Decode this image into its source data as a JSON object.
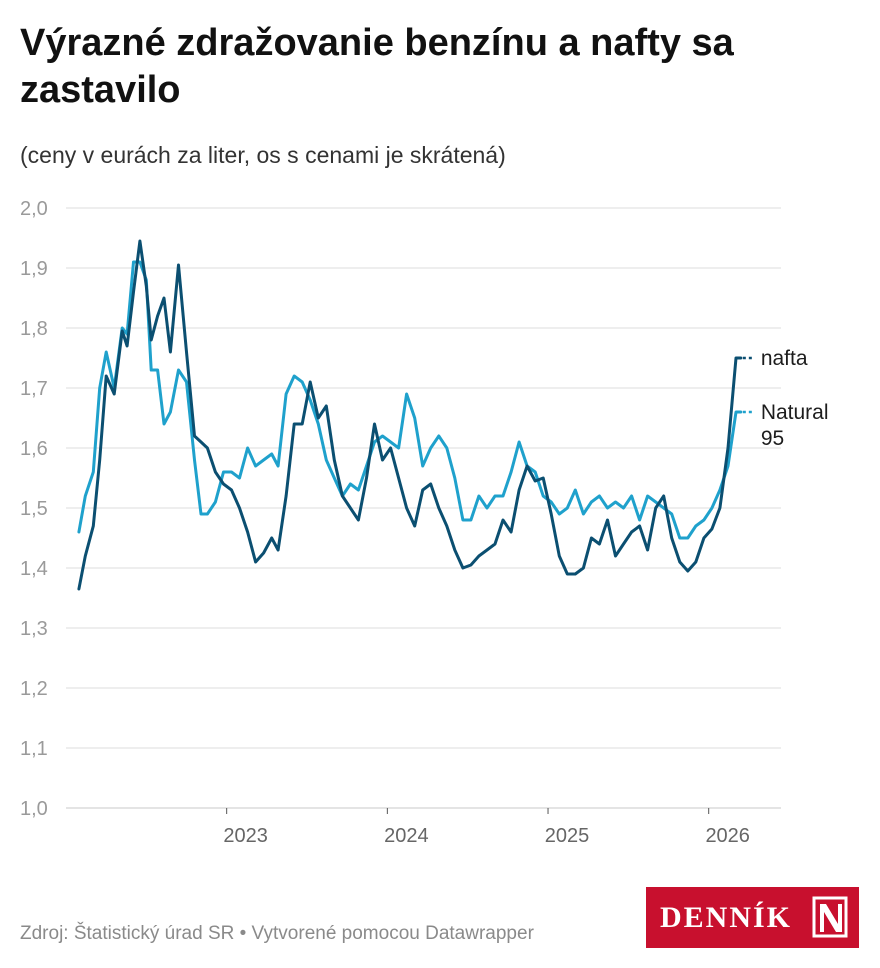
{
  "title": "Výrazné zdražovanie benzínu a nafty sa zastavilo",
  "subtitle": "(ceny v eurách za liter, os s cenami je skrátená)",
  "footer": "Zdroj: Štatistický úrad SR • Vytvorené pomocou Datawrapper",
  "logo": {
    "text": "DENNÍK",
    "mark": "N"
  },
  "colors": {
    "nafta": "#0b4f71",
    "natural95": "#1fa1cc",
    "grid": "#dddddd",
    "tick": "#9a9a9a"
  },
  "chart_data": {
    "type": "line",
    "title": "Výrazné zdražovanie benzínu a nafty sa zastavilo",
    "subtitle": "(ceny v eurách za liter, os s cenami je skrátená)",
    "xlabel": "",
    "ylabel": "",
    "xlim": [
      2022.0,
      2026.45
    ],
    "ylim": [
      1.0,
      2.0
    ],
    "grid": true,
    "y_ticks": [
      1.0,
      1.1,
      1.2,
      1.3,
      1.4,
      1.5,
      1.6,
      1.7,
      1.8,
      1.9,
      2.0
    ],
    "y_tick_labels": [
      "1,0",
      "1,1",
      "1,2",
      "1,3",
      "1,4",
      "1,5",
      "1,6",
      "1,7",
      "1,8",
      "1,9",
      "2,0"
    ],
    "x_ticks": [
      2023,
      2024,
      2025,
      2026
    ],
    "x_tick_labels": [
      "2023",
      "2024",
      "2025",
      "2026"
    ],
    "series": [
      {
        "name": "nafta",
        "label": "nafta",
        "x": [
          2022.08,
          2022.12,
          2022.17,
          2022.21,
          2022.25,
          2022.3,
          2022.35,
          2022.38,
          2022.42,
          2022.46,
          2022.5,
          2022.53,
          2022.57,
          2022.61,
          2022.65,
          2022.7,
          2022.75,
          2022.8,
          2022.84,
          2022.88,
          2022.93,
          2022.98,
          2023.03,
          2023.08,
          2023.13,
          2023.18,
          2023.23,
          2023.28,
          2023.32,
          2023.37,
          2023.42,
          2023.47,
          2023.52,
          2023.57,
          2023.62,
          2023.67,
          2023.72,
          2023.77,
          2023.82,
          2023.87,
          2023.92,
          2023.97,
          2024.02,
          2024.07,
          2024.12,
          2024.17,
          2024.22,
          2024.27,
          2024.32,
          2024.37,
          2024.42,
          2024.47,
          2024.52,
          2024.57,
          2024.62,
          2024.67,
          2024.72,
          2024.77,
          2024.82,
          2024.87,
          2024.92,
          2024.97,
          2025.02,
          2025.07,
          2025.12,
          2025.17,
          2025.22,
          2025.27,
          2025.32,
          2025.37,
          2025.42,
          2025.47,
          2025.52,
          2025.57,
          2025.62,
          2025.67,
          2025.72,
          2025.77,
          2025.82,
          2025.87,
          2025.92,
          2025.97,
          2026.02,
          2026.07,
          2026.12,
          2026.17,
          2026.2
        ],
        "values": [
          1.365,
          1.42,
          1.47,
          1.58,
          1.72,
          1.69,
          1.795,
          1.77,
          1.86,
          1.945,
          1.87,
          1.78,
          1.82,
          1.85,
          1.76,
          1.905,
          1.76,
          1.62,
          1.61,
          1.6,
          1.56,
          1.54,
          1.53,
          1.5,
          1.46,
          1.41,
          1.425,
          1.45,
          1.43,
          1.52,
          1.64,
          1.64,
          1.71,
          1.65,
          1.67,
          1.58,
          1.52,
          1.5,
          1.48,
          1.55,
          1.64,
          1.58,
          1.6,
          1.55,
          1.5,
          1.47,
          1.53,
          1.54,
          1.5,
          1.47,
          1.43,
          1.4,
          1.405,
          1.42,
          1.43,
          1.44,
          1.48,
          1.46,
          1.53,
          1.57,
          1.545,
          1.55,
          1.49,
          1.42,
          1.39,
          1.39,
          1.4,
          1.45,
          1.44,
          1.48,
          1.42,
          1.44,
          1.46,
          1.47,
          1.43,
          1.5,
          1.52,
          1.45,
          1.41,
          1.395,
          1.41,
          1.45,
          1.465,
          1.5,
          1.6,
          1.75,
          1.75
        ]
      },
      {
        "name": "Natural 95",
        "label": "Natural 95",
        "x": [
          2022.08,
          2022.12,
          2022.17,
          2022.21,
          2022.25,
          2022.3,
          2022.35,
          2022.38,
          2022.42,
          2022.46,
          2022.5,
          2022.53,
          2022.57,
          2022.61,
          2022.65,
          2022.7,
          2022.75,
          2022.8,
          2022.84,
          2022.88,
          2022.93,
          2022.98,
          2023.03,
          2023.08,
          2023.13,
          2023.18,
          2023.23,
          2023.28,
          2023.32,
          2023.37,
          2023.42,
          2023.47,
          2023.52,
          2023.57,
          2023.62,
          2023.67,
          2023.72,
          2023.77,
          2023.82,
          2023.87,
          2023.92,
          2023.97,
          2024.02,
          2024.07,
          2024.12,
          2024.17,
          2024.22,
          2024.27,
          2024.32,
          2024.37,
          2024.42,
          2024.47,
          2024.52,
          2024.57,
          2024.62,
          2024.67,
          2024.72,
          2024.77,
          2024.82,
          2024.87,
          2024.92,
          2024.97,
          2025.02,
          2025.07,
          2025.12,
          2025.17,
          2025.22,
          2025.27,
          2025.32,
          2025.37,
          2025.42,
          2025.47,
          2025.52,
          2025.57,
          2025.62,
          2025.67,
          2025.72,
          2025.77,
          2025.82,
          2025.87,
          2025.92,
          2025.97,
          2026.02,
          2026.07,
          2026.12,
          2026.17,
          2026.2
        ],
        "values": [
          1.46,
          1.52,
          1.56,
          1.7,
          1.76,
          1.7,
          1.8,
          1.79,
          1.91,
          1.91,
          1.88,
          1.73,
          1.73,
          1.64,
          1.66,
          1.73,
          1.71,
          1.58,
          1.49,
          1.49,
          1.51,
          1.56,
          1.56,
          1.55,
          1.6,
          1.57,
          1.58,
          1.59,
          1.57,
          1.69,
          1.72,
          1.71,
          1.68,
          1.64,
          1.58,
          1.55,
          1.52,
          1.54,
          1.53,
          1.57,
          1.61,
          1.62,
          1.61,
          1.6,
          1.69,
          1.65,
          1.57,
          1.6,
          1.62,
          1.6,
          1.55,
          1.48,
          1.48,
          1.52,
          1.5,
          1.52,
          1.52,
          1.56,
          1.61,
          1.57,
          1.56,
          1.52,
          1.51,
          1.49,
          1.5,
          1.53,
          1.49,
          1.51,
          1.52,
          1.5,
          1.51,
          1.5,
          1.52,
          1.48,
          1.52,
          1.51,
          1.5,
          1.49,
          1.45,
          1.45,
          1.47,
          1.48,
          1.5,
          1.53,
          1.57,
          1.66,
          1.66
        ]
      }
    ]
  }
}
